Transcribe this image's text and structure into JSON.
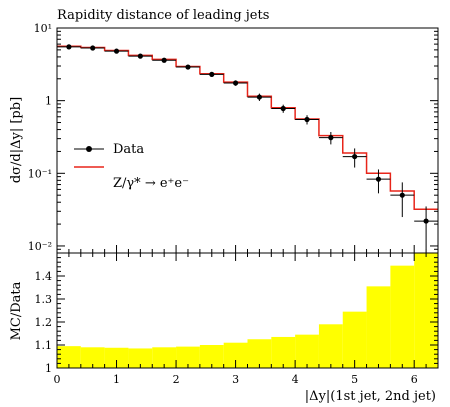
{
  "chart_data": [
    {
      "type": "line",
      "title": "Rapidity distance of leading jets",
      "ylabel": "dσ/d|Δy| [pb]",
      "xlabel": "",
      "yscale": "log",
      "ylim": [
        0.008,
        10
      ],
      "xlim": [
        0,
        6.4
      ],
      "y_tick_labels": [
        "10⁻²",
        "10⁻¹",
        "1",
        "10¹"
      ],
      "legend_position": "center-left",
      "series": [
        {
          "name": "Data",
          "marker": "circle",
          "x": [
            0.2,
            0.6,
            1.0,
            1.4,
            1.8,
            2.2,
            2.6,
            3.0,
            3.4,
            3.8,
            4.2,
            4.6,
            5.0,
            5.4,
            5.8,
            6.2
          ],
          "y": [
            5.5,
            5.3,
            4.8,
            4.1,
            3.6,
            2.9,
            2.3,
            1.75,
            1.12,
            0.78,
            0.55,
            0.31,
            0.17,
            0.083,
            0.05,
            0.022
          ],
          "y_err": [
            0.35,
            0.3,
            0.3,
            0.25,
            0.2,
            0.2,
            0.15,
            0.15,
            0.13,
            0.1,
            0.08,
            0.06,
            0.05,
            0.03,
            0.025,
            0.013
          ]
        },
        {
          "name": "Z/γ* → e⁺e⁻",
          "style": "step",
          "color": "#e8251a",
          "bin_edges": [
            0,
            0.4,
            0.8,
            1.2,
            1.6,
            2.0,
            2.4,
            2.8,
            3.2,
            3.6,
            4.0,
            4.4,
            4.8,
            5.2,
            5.6,
            6.0,
            6.4
          ],
          "y": [
            5.6,
            5.4,
            4.9,
            4.2,
            3.7,
            2.95,
            2.35,
            1.8,
            1.15,
            0.8,
            0.56,
            0.33,
            0.19,
            0.1,
            0.057,
            0.032
          ]
        }
      ]
    },
    {
      "type": "bar",
      "ylabel": "MC/Data",
      "xlabel": "|Δy|(1st jet, 2nd jet)",
      "xlim": [
        0,
        6.4
      ],
      "ylim": [
        1.0,
        1.5
      ],
      "x_tick_labels": [
        "0",
        "1",
        "2",
        "3",
        "4",
        "5",
        "6"
      ],
      "y_tick_labels": [
        "1",
        "1.1",
        "1.2",
        "1.3",
        "1.4"
      ],
      "color": "#ffff00",
      "bin_edges": [
        0,
        0.4,
        0.8,
        1.2,
        1.6,
        2.0,
        2.4,
        2.8,
        3.2,
        3.6,
        4.0,
        4.4,
        4.8,
        5.2,
        5.6,
        6.0,
        6.4
      ],
      "values": [
        1.095,
        1.09,
        1.088,
        1.085,
        1.09,
        1.093,
        1.1,
        1.11,
        1.125,
        1.135,
        1.145,
        1.19,
        1.245,
        1.355,
        1.445,
        1.5
      ]
    }
  ]
}
